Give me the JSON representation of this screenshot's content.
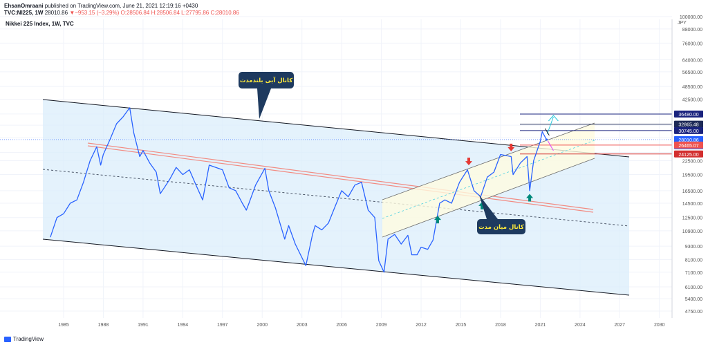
{
  "header": {
    "publisher": "EhsanOmraani",
    "published_text": "published on TradingView.com, June 21, 2021 12:19:16 +0430",
    "symbol": "TVC:NI225, 1W",
    "last": "28010.86",
    "change": "▼−953.15 (−3.29%)",
    "o": "O:28506.84",
    "h": "H:28506.84",
    "l": "L:27795.86",
    "c": "C:28010.86",
    "chart_title": "Nikkei 225 Index, 1W, TVC",
    "currency": "JPY"
  },
  "footer": {
    "brand": "TradingView"
  },
  "colors": {
    "price": "#2962ff",
    "channel_fill": "#dbeefb",
    "red_line": "#f28b82",
    "mid_fill": "#fffbe0",
    "callout_bg": "#1e3a5f",
    "callout_text": "#ffeb3b"
  },
  "annotations": {
    "blue_channel": "کانال آبی بلندمدت",
    "mid_channel": "کانال میان مدت"
  },
  "chart_data": {
    "type": "line",
    "title": "Nikkei 225 Index, 1W, TVC",
    "y_scale": "log",
    "ylim": [
      4300,
      100000
    ],
    "xlim": [
      1983,
      2032
    ],
    "y_ticks": [
      "100000.00",
      "88000.00",
      "76000.00",
      "64000.00",
      "56500.00",
      "48500.00",
      "42500.00",
      "36500.00",
      "32500.00",
      "28500.00",
      "24500.00",
      "22500.00",
      "19500.00",
      "16500.00",
      "14500.00",
      "12500.00",
      "10900.00",
      "9300.00",
      "8100.00",
      "7100.00",
      "6100.00",
      "5400.00",
      "4750.00"
    ],
    "x_ticks": [
      "1985",
      "1988",
      "1991",
      "1994",
      "1997",
      "2000",
      "2003",
      "2006",
      "2009",
      "2012",
      "2015",
      "2018",
      "2021",
      "2024",
      "2027",
      "2030"
    ],
    "price_labels": [
      {
        "value": 36480,
        "text": "36480.00",
        "color": "#1a237e"
      },
      {
        "value": 32865.48,
        "text": "32865.48",
        "color": "#1e2a57"
      },
      {
        "value": 30745,
        "text": "30745.00",
        "color": "#1a237e"
      },
      {
        "value": 28010.86,
        "text": "28010.86",
        "color": "#2962ff",
        "sub": "3d 23h"
      },
      {
        "value": 26465.07,
        "text": "26465.07",
        "color": "#ef5350"
      },
      {
        "value": 24125,
        "text": "24125.00",
        "color": "#d32f2f"
      }
    ],
    "series": [
      {
        "x": [
          1984.0,
          1984.5,
          1985.0,
          1985.5,
          1986.0,
          1986.5,
          1987.0,
          1987.5,
          1987.8,
          1988.0,
          1988.5,
          1989.0,
          1989.5,
          1989.99,
          1990.3,
          1990.75,
          1991.0,
          1991.5,
          1992.0,
          1992.3,
          1992.6,
          1993.0,
          1993.5,
          1994.0,
          1994.5,
          1995.0,
          1995.5,
          1996.0,
          1996.5,
          1997.0,
          1997.5,
          1998.0,
          1998.5,
          1998.8,
          1999.0,
          1999.5,
          2000.2,
          2000.5,
          2001.0,
          2001.7,
          2002.0,
          2002.5,
          2003.3,
          2003.8,
          2004.0,
          2004.5,
          2005.0,
          2005.5,
          2006.0,
          2006.5,
          2007.0,
          2007.5,
          2008.0,
          2008.5,
          2008.8,
          2009.2,
          2009.5,
          2010.0,
          2010.5,
          2011.0,
          2011.3,
          2011.7,
          2012.0,
          2012.5,
          2012.9,
          2013.4,
          2013.8,
          2014.3,
          2014.9,
          2015.5,
          2016.0,
          2016.5,
          2017.0,
          2017.5,
          2018.0,
          2018.8,
          2018.95,
          2019.5,
          2020.0,
          2020.2,
          2020.5,
          2021.0,
          2021.15,
          2021.47
        ],
        "y": [
          10200,
          12500,
          13000,
          14500,
          15000,
          18000,
          22500,
          26000,
          21500,
          24000,
          28000,
          33000,
          35500,
          38916,
          30000,
          23500,
          25000,
          22000,
          20000,
          16000,
          17000,
          18500,
          21000,
          19500,
          20500,
          17500,
          15000,
          21500,
          21000,
          20500,
          17000,
          16500,
          14500,
          13500,
          14500,
          17500,
          20800,
          16500,
          13800,
          10000,
          11500,
          9500,
          7600,
          10500,
          11500,
          11000,
          11800,
          14000,
          16500,
          15500,
          17500,
          18000,
          13500,
          12500,
          8000,
          7100,
          10000,
          10500,
          9500,
          10400,
          8500,
          8500,
          9200,
          9000,
          9900,
          14500,
          15000,
          14500,
          18000,
          20500,
          16500,
          15500,
          19000,
          20000,
          24000,
          23500,
          19500,
          22000,
          23500,
          16500,
          22500,
          27500,
          30400,
          28010
        ]
      }
    ]
  }
}
